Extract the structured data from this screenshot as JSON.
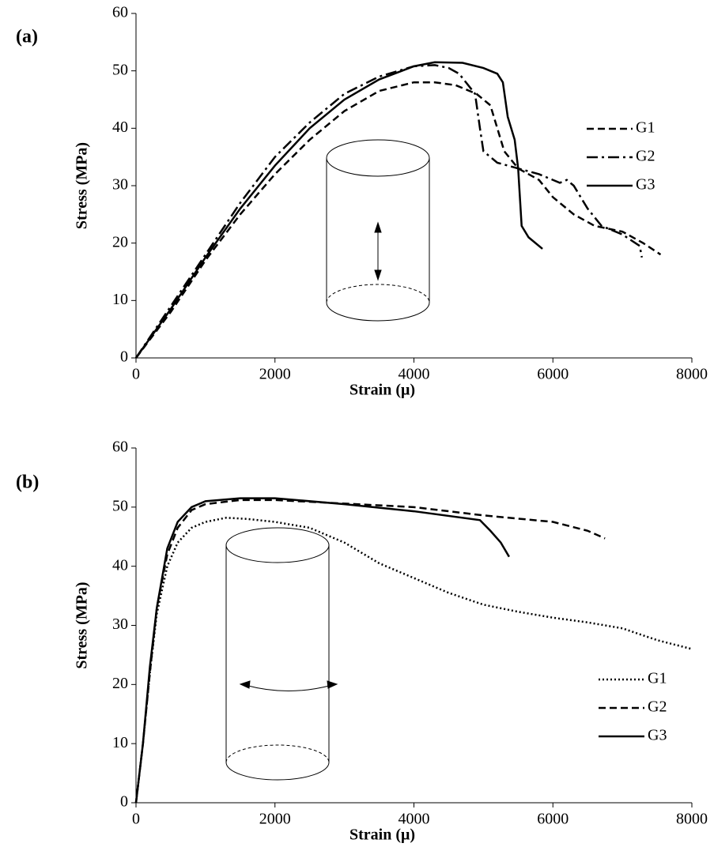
{
  "chart_data": [
    {
      "type": "line",
      "panel_label": "(a)",
      "xlabel": "Strain (μ)",
      "ylabel": "Stress (MPa)",
      "xlim": [
        0,
        8000
      ],
      "xticks": [
        0,
        2000,
        4000,
        6000,
        8000
      ],
      "ylim": [
        0,
        60
      ],
      "yticks": [
        0,
        10,
        20,
        30,
        40,
        50,
        60
      ],
      "legend": "right",
      "series": [
        {
          "name": "G1",
          "color": "#000000",
          "style": "dashed",
          "x": [
            0,
            500,
            1000,
            1500,
            2000,
            2500,
            3000,
            3500,
            4000,
            4300,
            4600,
            4900,
            5100,
            5200,
            5300,
            5500,
            5800,
            6000,
            6300,
            6600,
            7000,
            7300,
            7550
          ],
          "values": [
            0,
            8,
            17,
            25,
            32,
            38,
            43,
            46.5,
            48,
            48,
            47.5,
            46,
            44,
            40,
            36,
            33,
            31,
            28,
            25,
            23,
            22,
            20,
            18
          ]
        },
        {
          "name": "G2",
          "color": "#000000",
          "style": "dashdot",
          "x": [
            0,
            500,
            1000,
            1500,
            2000,
            2500,
            3000,
            3500,
            4000,
            4300,
            4500,
            4650,
            4880,
            4950,
            5000,
            5200,
            5500,
            5800,
            6100,
            6200,
            6300,
            6500,
            6700,
            7000,
            7250,
            7280
          ],
          "values": [
            0,
            9,
            18,
            27,
            35,
            41,
            46,
            49,
            50.8,
            51,
            50.5,
            49.5,
            46,
            40,
            36,
            34,
            33,
            32,
            30.5,
            31,
            30,
            26,
            23,
            21.5,
            19.5,
            17.5
          ]
        },
        {
          "name": "G3",
          "color": "#000000",
          "style": "solid",
          "x": [
            0,
            500,
            1000,
            1500,
            2000,
            2500,
            3000,
            3500,
            4000,
            4300,
            4700,
            5000,
            5200,
            5280,
            5350,
            5450,
            5500,
            5550,
            5650,
            5850
          ],
          "values": [
            0,
            8.5,
            17.5,
            26,
            33.5,
            40,
            45,
            48.5,
            50.8,
            51.5,
            51.4,
            50.5,
            49.5,
            48,
            42,
            38,
            33,
            23,
            21,
            19
          ]
        }
      ]
    },
    {
      "type": "line",
      "panel_label": "(b)",
      "xlabel": "Strain (μ)",
      "ylabel": "Stress (MPa)",
      "xlim": [
        0,
        8000
      ],
      "xticks": [
        0,
        2000,
        4000,
        6000,
        8000
      ],
      "ylim": [
        0,
        60
      ],
      "yticks": [
        0,
        10,
        20,
        30,
        40,
        50,
        60
      ],
      "legend": "right",
      "series": [
        {
          "name": "G1",
          "color": "#000000",
          "style": "dotted",
          "x": [
            0,
            100,
            200,
            300,
            450,
            600,
            800,
            1000,
            1300,
            1600,
            2000,
            2500,
            3000,
            3500,
            4000,
            4500,
            5000,
            5500,
            6000,
            6500,
            7000,
            7500,
            8000
          ],
          "values": [
            0,
            10,
            22,
            32,
            40,
            44,
            46.5,
            47.5,
            48.2,
            48,
            47.5,
            46.5,
            44,
            40.5,
            38,
            35.5,
            33.5,
            32.3,
            31.3,
            30.5,
            29.5,
            27.5,
            26
          ]
        },
        {
          "name": "G2",
          "color": "#000000",
          "style": "dashed",
          "x": [
            0,
            100,
            200,
            300,
            450,
            600,
            800,
            1000,
            1500,
            2000,
            3000,
            4000,
            5000,
            6000,
            6500,
            6750
          ],
          "values": [
            0,
            10,
            22,
            33,
            42,
            46.5,
            49.5,
            50.5,
            51.2,
            51.2,
            50.6,
            50,
            48.6,
            47.5,
            46,
            44.7
          ]
        },
        {
          "name": "G3",
          "color": "#000000",
          "style": "solid",
          "x": [
            0,
            100,
            200,
            300,
            450,
            600,
            800,
            1000,
            1500,
            2000,
            3000,
            4000,
            4950,
            5100,
            5250,
            5370
          ],
          "values": [
            0,
            10,
            23,
            33,
            43,
            47.5,
            50,
            51,
            51.5,
            51.5,
            50.5,
            49.3,
            47.8,
            46,
            44,
            41.6
          ]
        }
      ]
    }
  ]
}
